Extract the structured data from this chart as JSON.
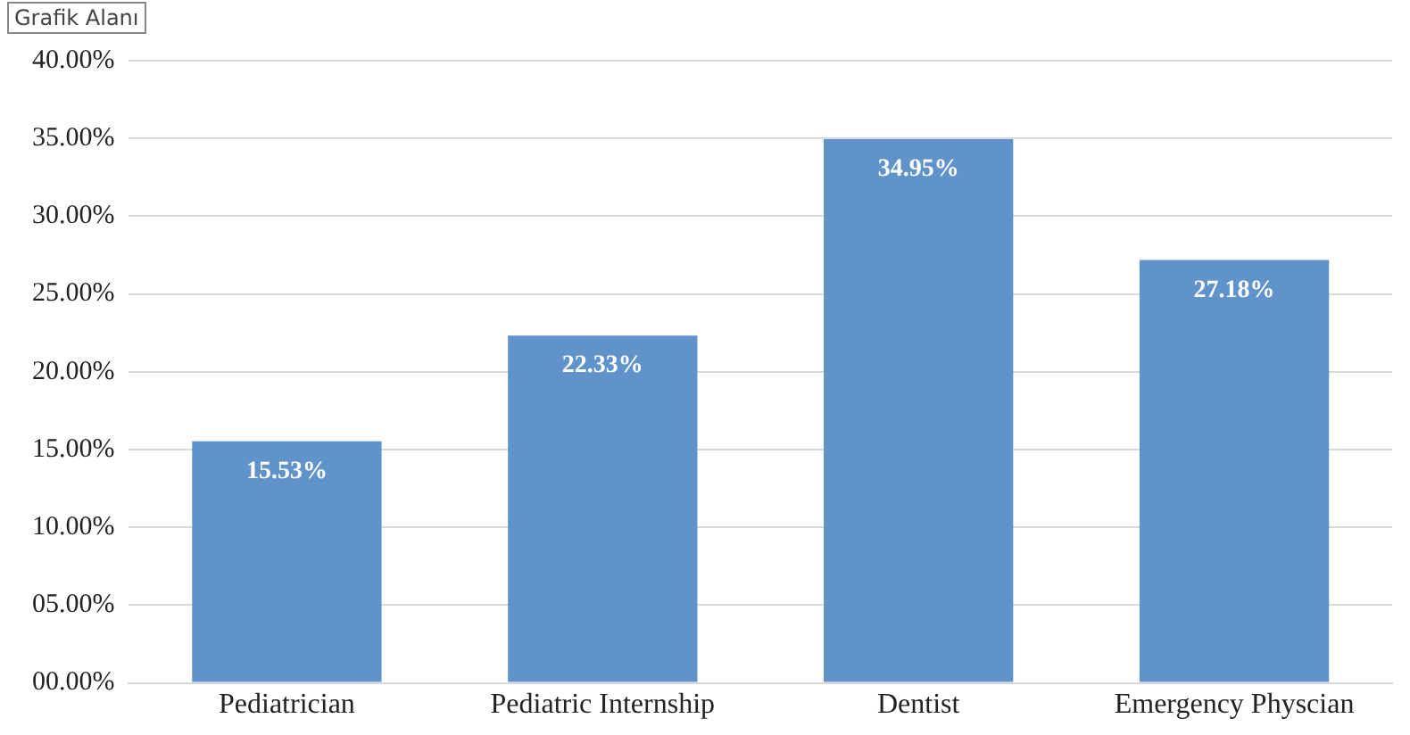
{
  "chart_data": {
    "type": "bar",
    "categories": [
      "Pediatrician",
      "Pediatric Internship",
      "Dentist",
      "Emergency Physcian"
    ],
    "values": [
      15.53,
      22.33,
      34.95,
      27.18
    ],
    "value_labels": [
      "15.53%",
      "22.33%",
      "34.95%",
      "27.18%"
    ],
    "color": "#6193cb",
    "ylim": [
      0,
      40
    ],
    "yticks": [
      {
        "value": 0,
        "label": "00.00%"
      },
      {
        "value": 5,
        "label": "05.00%"
      },
      {
        "value": 10,
        "label": "10.00%"
      },
      {
        "value": 15,
        "label": "15.00%"
      },
      {
        "value": 20,
        "label": "20.00%"
      },
      {
        "value": 25,
        "label": "25.00%"
      },
      {
        "value": 30,
        "label": "30.00%"
      },
      {
        "value": 35,
        "label": "35.00%"
      },
      {
        "value": 40,
        "label": "40.00%"
      }
    ],
    "grid": "y",
    "annotations": [
      "Grafik Alanı"
    ]
  }
}
